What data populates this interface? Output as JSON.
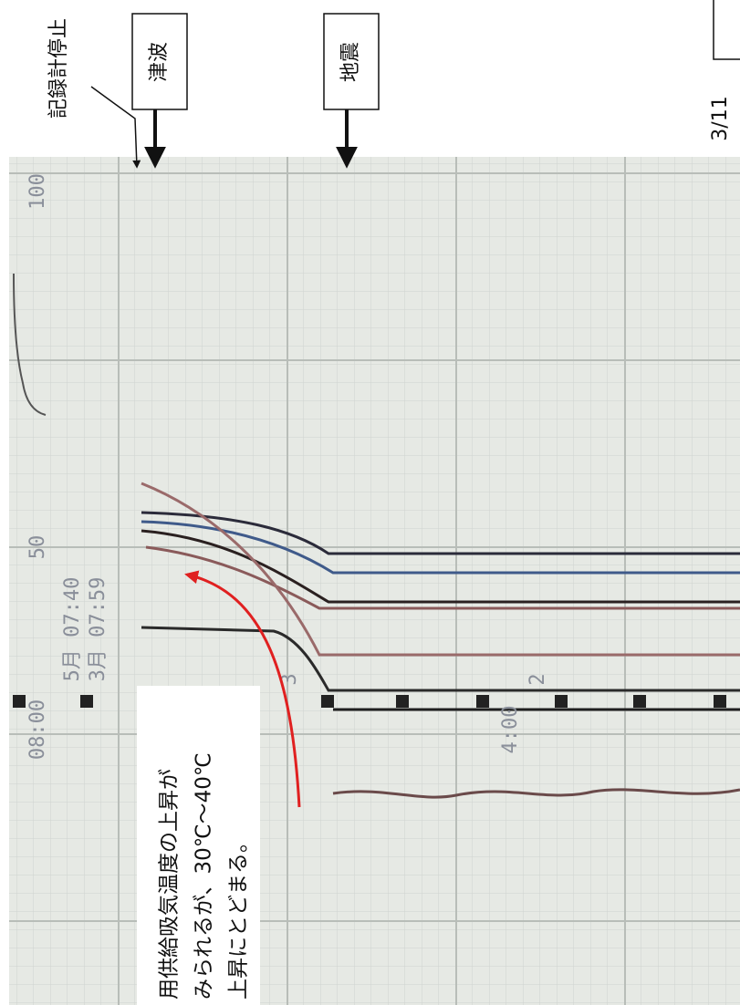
{
  "annotations": {
    "recorder_stop": "記録計停止",
    "tsunami": "津波",
    "earthquake": "地震",
    "date": "3/11"
  },
  "paper": {
    "scale_top": "100",
    "scale_mid": "50",
    "time_1": "08:00",
    "time_2": "5月 07:40",
    "time_3": "3月 07:59",
    "time_4": "4:00",
    "div_3": "3",
    "div_2": "2"
  },
  "note": {
    "lines": [
      "用供給吸気温度の上昇が",
      "みられるが、30℃～40℃",
      "上昇にとどまる。"
    ]
  }
}
